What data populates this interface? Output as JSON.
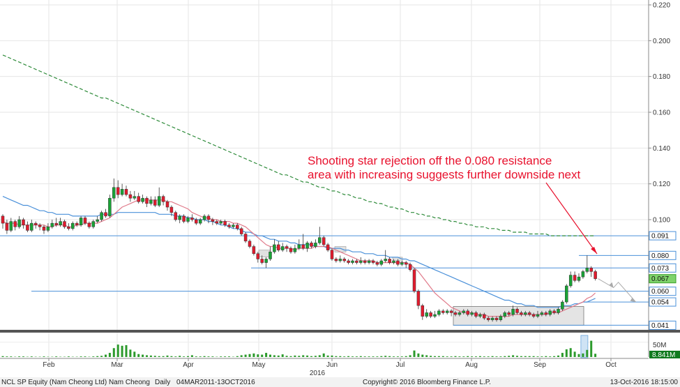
{
  "chart_data": {
    "type": "candlestick",
    "security": "NCL SP Equity (Nam Cheong Ltd) Nam Cheong",
    "periodicity": "Daily",
    "date_range": "04MAR2011-13OCT2016",
    "copyright": "Copyright© 2016 Bloomberg Finance L.P.",
    "timestamp": "13-Oct-2016 18:15:00",
    "year_label": "2016",
    "annotation": {
      "line1": "Shooting star rejection off the 0.080 resistance",
      "line2": "area with increasing suggests further downside next"
    },
    "price_axis": {
      "ylim": [
        0.04,
        0.22
      ],
      "ticks": [
        "0.220",
        "0.200",
        "0.180",
        "0.160",
        "0.140",
        "0.120",
        "0.100"
      ]
    },
    "levels": [
      {
        "label": "0.091",
        "value": 0.091,
        "style": "box"
      },
      {
        "label": "0.080",
        "value": 0.08,
        "style": "box"
      },
      {
        "label": "0.073",
        "value": 0.073,
        "style": "box"
      },
      {
        "label": "0.067",
        "value": 0.067,
        "style": "current"
      },
      {
        "label": "0.060",
        "value": 0.06,
        "style": "box"
      },
      {
        "label": "0.054",
        "value": 0.054,
        "style": "box"
      },
      {
        "label": "0.041",
        "value": 0.041,
        "style": "box"
      }
    ],
    "volume_axis": {
      "label": "50M",
      "current": "8.841M",
      "ylim": [
        0,
        80
      ]
    },
    "months": [
      "Feb",
      "Mar",
      "Apr",
      "May",
      "Jun",
      "Jul",
      "Aug",
      "Sep",
      "Oct"
    ],
    "candles": [
      [
        0.102,
        0.098,
        0.103,
        0.095
      ],
      [
        0.098,
        0.094,
        0.1,
        0.092
      ],
      [
        0.094,
        0.099,
        0.101,
        0.093
      ],
      [
        0.099,
        0.096,
        0.1,
        0.094
      ],
      [
        0.096,
        0.1,
        0.102,
        0.095
      ],
      [
        0.1,
        0.097,
        0.101,
        0.095
      ],
      [
        0.097,
        0.094,
        0.099,
        0.093
      ],
      [
        0.094,
        0.098,
        0.1,
        0.093
      ],
      [
        0.098,
        0.097,
        0.099,
        0.095
      ],
      [
        0.097,
        0.096,
        0.098,
        0.094
      ],
      [
        0.096,
        0.094,
        0.097,
        0.092
      ],
      [
        0.094,
        0.096,
        0.098,
        0.093
      ],
      [
        0.096,
        0.098,
        0.1,
        0.095
      ],
      [
        0.098,
        0.097,
        0.101,
        0.096
      ],
      [
        0.097,
        0.099,
        0.101,
        0.096
      ],
      [
        0.099,
        0.096,
        0.1,
        0.095
      ],
      [
        0.096,
        0.095,
        0.098,
        0.094
      ],
      [
        0.095,
        0.098,
        0.099,
        0.094
      ],
      [
        0.098,
        0.097,
        0.099,
        0.096
      ],
      [
        0.097,
        0.101,
        0.102,
        0.096
      ],
      [
        0.101,
        0.098,
        0.102,
        0.097
      ],
      [
        0.098,
        0.096,
        0.099,
        0.095
      ],
      [
        0.096,
        0.099,
        0.1,
        0.095
      ],
      [
        0.099,
        0.1,
        0.102,
        0.098
      ],
      [
        0.1,
        0.104,
        0.105,
        0.099
      ],
      [
        0.104,
        0.102,
        0.106,
        0.101
      ],
      [
        0.102,
        0.112,
        0.114,
        0.101
      ],
      [
        0.112,
        0.118,
        0.123,
        0.11
      ],
      [
        0.118,
        0.114,
        0.122,
        0.112
      ],
      [
        0.114,
        0.117,
        0.12,
        0.113
      ],
      [
        0.117,
        0.114,
        0.119,
        0.113
      ],
      [
        0.114,
        0.112,
        0.116,
        0.11
      ],
      [
        0.112,
        0.113,
        0.116,
        0.111
      ],
      [
        0.113,
        0.11,
        0.115,
        0.109
      ],
      [
        0.11,
        0.112,
        0.114,
        0.109
      ],
      [
        0.112,
        0.109,
        0.113,
        0.107
      ],
      [
        0.109,
        0.111,
        0.113,
        0.108
      ],
      [
        0.111,
        0.108,
        0.113,
        0.107
      ],
      [
        0.108,
        0.113,
        0.118,
        0.107
      ],
      [
        0.113,
        0.11,
        0.114,
        0.108
      ],
      [
        0.11,
        0.107,
        0.111,
        0.105
      ],
      [
        0.107,
        0.104,
        0.108,
        0.102
      ],
      [
        0.104,
        0.1,
        0.105,
        0.099
      ],
      [
        0.1,
        0.102,
        0.103,
        0.098
      ],
      [
        0.102,
        0.099,
        0.103,
        0.098
      ],
      [
        0.099,
        0.101,
        0.102,
        0.098
      ],
      [
        0.101,
        0.1,
        0.103,
        0.099
      ],
      [
        0.1,
        0.098,
        0.101,
        0.097
      ],
      [
        0.098,
        0.1,
        0.101,
        0.097
      ],
      [
        0.1,
        0.102,
        0.103,
        0.099
      ],
      [
        0.102,
        0.1,
        0.103,
        0.098
      ],
      [
        0.1,
        0.099,
        0.101,
        0.097
      ],
      [
        0.099,
        0.098,
        0.1,
        0.097
      ],
      [
        0.098,
        0.099,
        0.1,
        0.097
      ],
      [
        0.099,
        0.097,
        0.1,
        0.096
      ],
      [
        0.097,
        0.096,
        0.098,
        0.095
      ],
      [
        0.096,
        0.097,
        0.098,
        0.095
      ],
      [
        0.097,
        0.095,
        0.098,
        0.094
      ],
      [
        0.095,
        0.092,
        0.096,
        0.091
      ],
      [
        0.092,
        0.088,
        0.093,
        0.087
      ],
      [
        0.088,
        0.085,
        0.089,
        0.084
      ],
      [
        0.085,
        0.081,
        0.086,
        0.08
      ],
      [
        0.081,
        0.078,
        0.082,
        0.076
      ],
      [
        0.078,
        0.076,
        0.08,
        0.075
      ],
      [
        0.076,
        0.078,
        0.079,
        0.073
      ],
      [
        0.078,
        0.082,
        0.085,
        0.077
      ],
      [
        0.082,
        0.086,
        0.089,
        0.081
      ],
      [
        0.086,
        0.083,
        0.088,
        0.082
      ],
      [
        0.083,
        0.085,
        0.087,
        0.082
      ],
      [
        0.085,
        0.084,
        0.086,
        0.082
      ],
      [
        0.084,
        0.082,
        0.085,
        0.081
      ],
      [
        0.082,
        0.084,
        0.086,
        0.081
      ],
      [
        0.084,
        0.086,
        0.089,
        0.083
      ],
      [
        0.086,
        0.084,
        0.092,
        0.083
      ],
      [
        0.084,
        0.087,
        0.088,
        0.082
      ],
      [
        0.087,
        0.085,
        0.088,
        0.084
      ],
      [
        0.085,
        0.087,
        0.089,
        0.084
      ],
      [
        0.087,
        0.09,
        0.096,
        0.086
      ],
      [
        0.09,
        0.086,
        0.091,
        0.085
      ],
      [
        0.086,
        0.083,
        0.087,
        0.082
      ],
      [
        0.083,
        0.078,
        0.084,
        0.077
      ],
      [
        0.078,
        0.077,
        0.079,
        0.076
      ],
      [
        0.077,
        0.078,
        0.08,
        0.076
      ],
      [
        0.078,
        0.077,
        0.079,
        0.076
      ],
      [
        0.077,
        0.076,
        0.078,
        0.075
      ],
      [
        0.076,
        0.077,
        0.078,
        0.075
      ],
      [
        0.077,
        0.076,
        0.078,
        0.075
      ],
      [
        0.076,
        0.077,
        0.079,
        0.075
      ],
      [
        0.077,
        0.076,
        0.078,
        0.075
      ],
      [
        0.076,
        0.077,
        0.078,
        0.075
      ],
      [
        0.077,
        0.076,
        0.078,
        0.075
      ],
      [
        0.076,
        0.075,
        0.077,
        0.074
      ],
      [
        0.075,
        0.077,
        0.078,
        0.074
      ],
      [
        0.077,
        0.078,
        0.083,
        0.076
      ],
      [
        0.078,
        0.076,
        0.079,
        0.075
      ],
      [
        0.076,
        0.077,
        0.078,
        0.075
      ],
      [
        0.077,
        0.075,
        0.078,
        0.074
      ],
      [
        0.075,
        0.076,
        0.077,
        0.074
      ],
      [
        0.076,
        0.075,
        0.077,
        0.073
      ],
      [
        0.075,
        0.072,
        0.076,
        0.071
      ],
      [
        0.072,
        0.06,
        0.073,
        0.059
      ],
      [
        0.06,
        0.052,
        0.061,
        0.05
      ],
      [
        0.052,
        0.046,
        0.053,
        0.044
      ],
      [
        0.046,
        0.048,
        0.05,
        0.045
      ],
      [
        0.048,
        0.046,
        0.049,
        0.045
      ],
      [
        0.046,
        0.047,
        0.049,
        0.045
      ],
      [
        0.047,
        0.049,
        0.05,
        0.046
      ],
      [
        0.049,
        0.048,
        0.05,
        0.047
      ],
      [
        0.048,
        0.049,
        0.05,
        0.047
      ],
      [
        0.049,
        0.048,
        0.05,
        0.046
      ],
      [
        0.048,
        0.047,
        0.049,
        0.046
      ],
      [
        0.047,
        0.048,
        0.049,
        0.046
      ],
      [
        0.048,
        0.049,
        0.05,
        0.047
      ],
      [
        0.049,
        0.047,
        0.05,
        0.046
      ],
      [
        0.047,
        0.048,
        0.049,
        0.046
      ],
      [
        0.048,
        0.046,
        0.049,
        0.045
      ],
      [
        0.046,
        0.047,
        0.048,
        0.045
      ],
      [
        0.047,
        0.045,
        0.048,
        0.044
      ],
      [
        0.045,
        0.044,
        0.046,
        0.043
      ],
      [
        0.044,
        0.045,
        0.046,
        0.043
      ],
      [
        0.045,
        0.044,
        0.046,
        0.043
      ],
      [
        0.044,
        0.046,
        0.047,
        0.043
      ],
      [
        0.046,
        0.048,
        0.049,
        0.045
      ],
      [
        0.048,
        0.047,
        0.049,
        0.046
      ],
      [
        0.047,
        0.05,
        0.052,
        0.046
      ],
      [
        0.05,
        0.048,
        0.051,
        0.047
      ],
      [
        0.048,
        0.047,
        0.049,
        0.046
      ],
      [
        0.047,
        0.048,
        0.049,
        0.046
      ],
      [
        0.048,
        0.047,
        0.049,
        0.046
      ],
      [
        0.047,
        0.046,
        0.048,
        0.045
      ],
      [
        0.046,
        0.047,
        0.049,
        0.045
      ],
      [
        0.047,
        0.048,
        0.049,
        0.046
      ],
      [
        0.048,
        0.047,
        0.049,
        0.046
      ],
      [
        0.047,
        0.049,
        0.05,
        0.046
      ],
      [
        0.049,
        0.048,
        0.05,
        0.047
      ],
      [
        0.048,
        0.05,
        0.051,
        0.047
      ],
      [
        0.05,
        0.054,
        0.055,
        0.049
      ],
      [
        0.054,
        0.063,
        0.064,
        0.053
      ],
      [
        0.063,
        0.069,
        0.071,
        0.062
      ],
      [
        0.069,
        0.066,
        0.071,
        0.065
      ],
      [
        0.066,
        0.068,
        0.07,
        0.065
      ],
      [
        0.068,
        0.071,
        0.072,
        0.067
      ],
      [
        0.071,
        0.073,
        0.08,
        0.07
      ],
      [
        0.073,
        0.071,
        0.074,
        0.068
      ],
      [
        0.071,
        0.067,
        0.072,
        0.066
      ]
    ],
    "sma_fast": [
      0.099,
      0.098,
      0.098,
      0.098,
      0.097,
      0.097,
      0.097,
      0.097,
      0.097,
      0.097,
      0.097,
      0.096,
      0.096,
      0.097,
      0.097,
      0.097,
      0.096,
      0.096,
      0.097,
      0.097,
      0.098,
      0.098,
      0.098,
      0.098,
      0.099,
      0.1,
      0.101,
      0.103,
      0.105,
      0.107,
      0.108,
      0.109,
      0.11,
      0.111,
      0.111,
      0.111,
      0.111,
      0.111,
      0.111,
      0.111,
      0.11,
      0.11,
      0.109,
      0.108,
      0.107,
      0.106,
      0.104,
      0.103,
      0.102,
      0.101,
      0.101,
      0.1,
      0.1,
      0.099,
      0.099,
      0.099,
      0.098,
      0.098,
      0.097,
      0.096,
      0.094,
      0.092,
      0.09,
      0.088,
      0.086,
      0.085,
      0.085,
      0.084,
      0.084,
      0.084,
      0.084,
      0.083,
      0.084,
      0.084,
      0.084,
      0.084,
      0.085,
      0.085,
      0.085,
      0.085,
      0.084,
      0.083,
      0.082,
      0.081,
      0.08,
      0.079,
      0.078,
      0.077,
      0.077,
      0.077,
      0.077,
      0.076,
      0.076,
      0.076,
      0.076,
      0.076,
      0.076,
      0.076,
      0.076,
      0.075,
      0.073,
      0.071,
      0.068,
      0.065,
      0.062,
      0.059,
      0.057,
      0.055,
      0.053,
      0.051,
      0.05,
      0.049,
      0.048,
      0.048,
      0.048,
      0.047,
      0.047,
      0.047,
      0.046,
      0.046,
      0.046,
      0.046,
      0.046,
      0.046,
      0.047,
      0.047,
      0.047,
      0.047,
      0.047,
      0.047,
      0.047,
      0.047,
      0.047,
      0.048,
      0.048,
      0.048,
      0.049,
      0.05,
      0.051,
      0.052,
      0.053,
      0.054,
      0.056,
      0.057,
      0.059
    ],
    "sma_mid": [
      0.113,
      0.112,
      0.111,
      0.11,
      0.109,
      0.108,
      0.108,
      0.107,
      0.106,
      0.105,
      0.105,
      0.104,
      0.104,
      0.103,
      0.103,
      0.103,
      0.103,
      0.102,
      0.102,
      0.102,
      0.102,
      0.102,
      0.102,
      0.102,
      0.103,
      0.103,
      0.103,
      0.103,
      0.104,
      0.104,
      0.104,
      0.104,
      0.104,
      0.104,
      0.104,
      0.104,
      0.104,
      0.104,
      0.103,
      0.103,
      0.103,
      0.103,
      0.102,
      0.102,
      0.102,
      0.101,
      0.101,
      0.1,
      0.1,
      0.1,
      0.099,
      0.099,
      0.098,
      0.097,
      0.097,
      0.096,
      0.095,
      0.095,
      0.094,
      0.093,
      0.093,
      0.092,
      0.091,
      0.091,
      0.09,
      0.089,
      0.089,
      0.088,
      0.088,
      0.088,
      0.087,
      0.087,
      0.086,
      0.086,
      0.086,
      0.086,
      0.085,
      0.085,
      0.085,
      0.084,
      0.084,
      0.084,
      0.084,
      0.083,
      0.083,
      0.082,
      0.082,
      0.082,
      0.081,
      0.081,
      0.081,
      0.08,
      0.08,
      0.08,
      0.079,
      0.079,
      0.079,
      0.078,
      0.078,
      0.077,
      0.077,
      0.076,
      0.075,
      0.074,
      0.073,
      0.072,
      0.071,
      0.07,
      0.069,
      0.068,
      0.067,
      0.066,
      0.065,
      0.064,
      0.063,
      0.062,
      0.061,
      0.06,
      0.059,
      0.058,
      0.057,
      0.056,
      0.055,
      0.055,
      0.054,
      0.053,
      0.053,
      0.052,
      0.052,
      0.052,
      0.051,
      0.051,
      0.051,
      0.051,
      0.051,
      0.051,
      0.052,
      0.052,
      0.052,
      0.053,
      0.053,
      0.054,
      0.054,
      0.055,
      0.056
    ],
    "sma_slow": [
      0.192,
      0.191,
      0.19,
      0.189,
      0.188,
      0.187,
      0.186,
      0.185,
      0.184,
      0.183,
      0.182,
      0.181,
      0.18,
      0.179,
      0.178,
      0.177,
      0.176,
      0.175,
      0.174,
      0.173,
      0.172,
      0.171,
      0.17,
      0.169,
      0.168,
      0.168,
      0.167,
      0.166,
      0.165,
      0.164,
      0.163,
      0.162,
      0.161,
      0.16,
      0.159,
      0.158,
      0.157,
      0.156,
      0.155,
      0.154,
      0.153,
      0.152,
      0.151,
      0.15,
      0.149,
      0.148,
      0.147,
      0.146,
      0.145,
      0.144,
      0.143,
      0.142,
      0.141,
      0.14,
      0.139,
      0.138,
      0.137,
      0.136,
      0.135,
      0.134,
      0.133,
      0.132,
      0.131,
      0.13,
      0.129,
      0.128,
      0.127,
      0.126,
      0.125,
      0.125,
      0.124,
      0.123,
      0.122,
      0.121,
      0.121,
      0.12,
      0.119,
      0.118,
      0.118,
      0.117,
      0.116,
      0.116,
      0.115,
      0.114,
      0.114,
      0.113,
      0.112,
      0.112,
      0.111,
      0.11,
      0.11,
      0.109,
      0.109,
      0.108,
      0.107,
      0.107,
      0.106,
      0.106,
      0.105,
      0.104,
      0.104,
      0.103,
      0.103,
      0.102,
      0.102,
      0.101,
      0.101,
      0.1,
      0.1,
      0.099,
      0.099,
      0.098,
      0.098,
      0.097,
      0.097,
      0.096,
      0.096,
      0.096,
      0.095,
      0.095,
      0.095,
      0.094,
      0.094,
      0.094,
      0.093,
      0.093,
      0.093,
      0.093,
      0.092,
      0.092,
      0.092,
      0.092,
      0.092,
      0.091,
      0.091,
      0.091,
      0.091,
      0.091,
      0.091,
      0.091,
      0.091,
      0.091,
      0.091,
      0.091,
      0.091
    ],
    "volume": [
      3,
      2,
      2,
      1,
      2,
      2,
      1,
      2,
      1,
      1,
      2,
      1,
      1,
      2,
      1,
      1,
      2,
      1,
      1,
      2,
      2,
      1,
      2,
      3,
      4,
      8,
      14,
      30,
      42,
      38,
      40,
      25,
      18,
      10,
      8,
      6,
      5,
      4,
      3,
      3,
      5,
      3,
      2,
      4,
      2,
      3,
      6,
      2,
      2,
      3,
      2,
      2,
      1,
      2,
      2,
      2,
      1,
      3,
      6,
      8,
      10,
      12,
      9,
      8,
      14,
      8,
      6,
      5,
      9,
      4,
      3,
      5,
      4,
      6,
      5,
      3,
      4,
      6,
      12,
      5,
      5,
      3,
      3,
      2,
      3,
      2,
      2,
      3,
      2,
      2,
      2,
      2,
      3,
      4,
      3,
      2,
      2,
      2,
      3,
      6,
      22,
      12,
      8,
      6,
      4,
      3,
      3,
      3,
      2,
      2,
      3,
      2,
      2,
      3,
      2,
      2,
      3,
      2,
      2,
      3,
      2,
      2,
      3,
      4,
      6,
      4,
      3,
      3,
      3,
      3,
      2,
      2,
      3,
      2,
      3,
      5,
      14,
      26,
      30,
      18,
      10,
      12,
      24,
      55,
      11
    ]
  }
}
